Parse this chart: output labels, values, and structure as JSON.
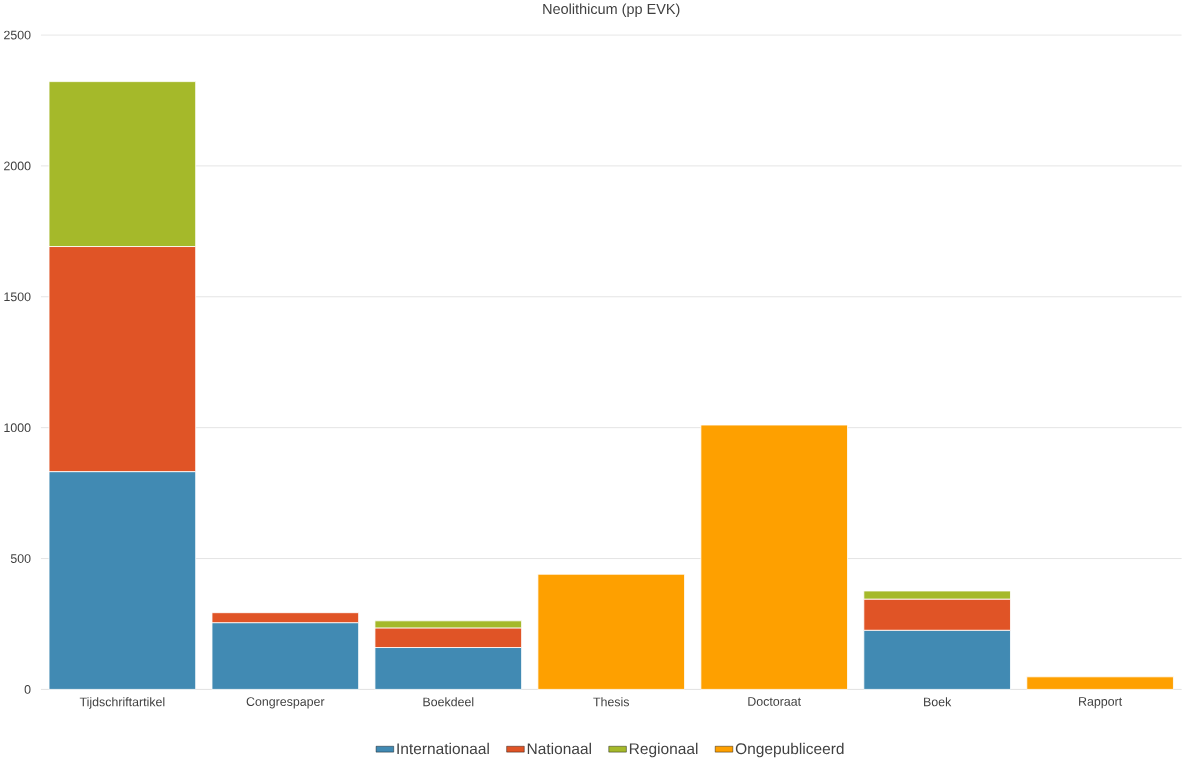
{
  "chart_data": {
    "type": "bar",
    "title": "Neolithicum (pp EVK)",
    "stacked": true,
    "categories": [
      "Tijdschriftartikel",
      "Congrespaper",
      "Boekdeel",
      "Thesis",
      "Doctoraat",
      "Boek",
      "Rapport"
    ],
    "series": [
      {
        "name": "Internationaal",
        "color": "#418ab3",
        "values": [
          832,
          255,
          160,
          null,
          null,
          226,
          null
        ]
      },
      {
        "name": "Nationaal",
        "color": "#e05426",
        "values": [
          860,
          38,
          75,
          null,
          null,
          119,
          null
        ]
      },
      {
        "name": "Regionaal",
        "color": "#a5b92a",
        "values": [
          630,
          null,
          27,
          null,
          null,
          31,
          null
        ]
      },
      {
        "name": "Ongepubliceerd",
        "color": "#fea000",
        "values": [
          null,
          null,
          null,
          440,
          1010,
          null,
          48
        ]
      }
    ],
    "ylim": [
      0,
      2500
    ],
    "yticks": [
      0,
      500,
      1000,
      1500,
      2000,
      2500
    ],
    "grid": "y",
    "legend": "bottom"
  }
}
